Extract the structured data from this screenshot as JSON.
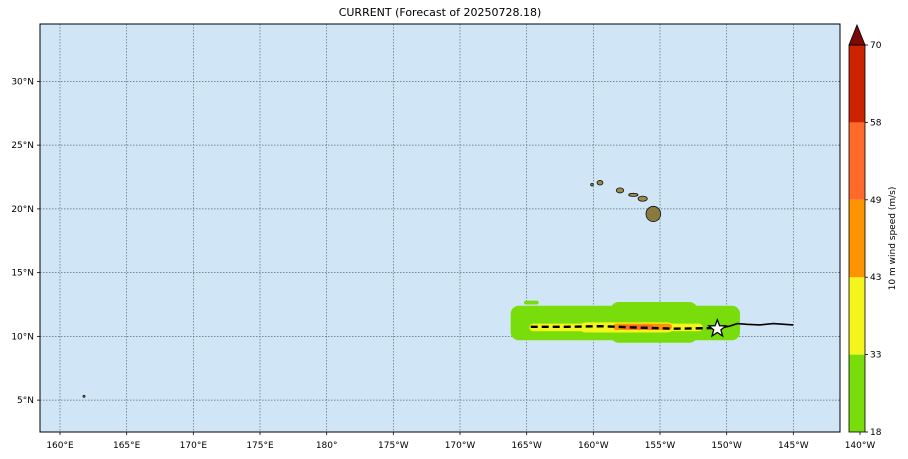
{
  "title": "CURRENT (Forecast of 20250728.18)",
  "map": {
    "lon_range": [
      158.5,
      218.5
    ],
    "lat_range": [
      2.5,
      34.5
    ],
    "ocean_color": "#d0e6f6",
    "grid": "dotted",
    "lon_ticks": [
      {
        "value": 160,
        "label": "160°E"
      },
      {
        "value": 165,
        "label": "165°E"
      },
      {
        "value": 170,
        "label": "170°E"
      },
      {
        "value": 175,
        "label": "175°E"
      },
      {
        "value": 180,
        "label": "180°"
      },
      {
        "value": 185,
        "label": "175°W"
      },
      {
        "value": 190,
        "label": "170°W"
      },
      {
        "value": 195,
        "label": "165°W"
      },
      {
        "value": 200,
        "label": "160°W"
      },
      {
        "value": 205,
        "label": "155°W"
      },
      {
        "value": 210,
        "label": "150°W"
      },
      {
        "value": 215,
        "label": "145°W"
      },
      {
        "value": 220,
        "label": "140°W"
      }
    ],
    "lat_ticks": [
      {
        "value": 5,
        "label": "5°N"
      },
      {
        "value": 10,
        "label": "10°N"
      },
      {
        "value": 15,
        "label": "15°N"
      },
      {
        "value": 20,
        "label": "20°N"
      },
      {
        "value": 25,
        "label": "25°N"
      },
      {
        "value": 30,
        "label": "30°N"
      }
    ],
    "islands": [
      {
        "name": "hawaii-big-island",
        "lon": 204.5,
        "lat": 19.6,
        "rx": 0.55,
        "ry": 0.6
      },
      {
        "name": "maui",
        "lon": 203.7,
        "lat": 20.8,
        "rx": 0.35,
        "ry": 0.2
      },
      {
        "name": "molokai",
        "lon": 203.0,
        "lat": 21.1,
        "rx": 0.35,
        "ry": 0.12
      },
      {
        "name": "oahu",
        "lon": 202.0,
        "lat": 21.45,
        "rx": 0.28,
        "ry": 0.2
      },
      {
        "name": "kauai",
        "lon": 200.5,
        "lat": 22.05,
        "rx": 0.22,
        "ry": 0.18
      },
      {
        "name": "niihau",
        "lon": 199.9,
        "lat": 21.9,
        "rx": 0.1,
        "ry": 0.1
      },
      {
        "name": "tiny-atoll",
        "lon": 161.8,
        "lat": 5.3,
        "rx": 0.08,
        "ry": 0.08
      }
    ],
    "wind_swath": [
      {
        "color": "#78dd0a",
        "lon": [
          193.8,
          211.0
        ],
        "lat": [
          9.7,
          12.4
        ]
      },
      {
        "color": "#78dd0a",
        "lon": [
          201.3,
          207.8
        ],
        "lat": [
          9.5,
          12.7
        ]
      },
      {
        "color": "#78dd0a",
        "lon": [
          196.5,
          199.6
        ],
        "lat": [
          10.0,
          11.9
        ]
      },
      {
        "color": "#78dd0a",
        "lon": [
          194.8,
          195.9
        ],
        "lat": [
          12.5,
          12.8
        ]
      },
      {
        "color": "#f5f51e",
        "lon": [
          195.2,
          208.2
        ],
        "lat": [
          10.4,
          11.0
        ]
      },
      {
        "color": "#f5f51e",
        "lon": [
          199.0,
          206.0
        ],
        "lat": [
          10.3,
          11.1
        ]
      },
      {
        "color": "#ff9400",
        "lon": [
          201.5,
          205.9
        ],
        "lat": [
          10.5,
          11.0
        ]
      },
      {
        "color": "#ff6a2a",
        "lon": [
          202.3,
          204.5
        ],
        "lat": [
          10.55,
          10.9
        ]
      }
    ],
    "forecast_track": [
      [
        195.3,
        10.75
      ],
      [
        198.0,
        10.75
      ],
      [
        200.5,
        10.8
      ],
      [
        203.0,
        10.7
      ],
      [
        206.0,
        10.6
      ],
      [
        209.0,
        10.65
      ]
    ],
    "past_track": [
      [
        215.0,
        10.9
      ],
      [
        214.3,
        10.95
      ],
      [
        213.5,
        11.0
      ],
      [
        212.5,
        10.9
      ],
      [
        211.5,
        10.95
      ],
      [
        210.8,
        11.0
      ],
      [
        210.2,
        10.8
      ],
      [
        209.3,
        10.6
      ]
    ],
    "current_position": {
      "lon": 209.3,
      "lat": 10.6
    }
  },
  "colorbar": {
    "label": "10 m wind speed (m/s)",
    "overflow_color": "#7b0a07",
    "levels": [
      {
        "value": 18,
        "label": "18"
      },
      {
        "value": 33,
        "label": "33"
      },
      {
        "value": 43,
        "label": "43"
      },
      {
        "value": 49,
        "label": "49"
      },
      {
        "value": 58,
        "label": "58"
      },
      {
        "value": 70,
        "label": "70"
      }
    ],
    "colors": [
      "#78dd0a",
      "#f5f51e",
      "#ff9400",
      "#ff6a2a",
      "#cc2200"
    ]
  }
}
